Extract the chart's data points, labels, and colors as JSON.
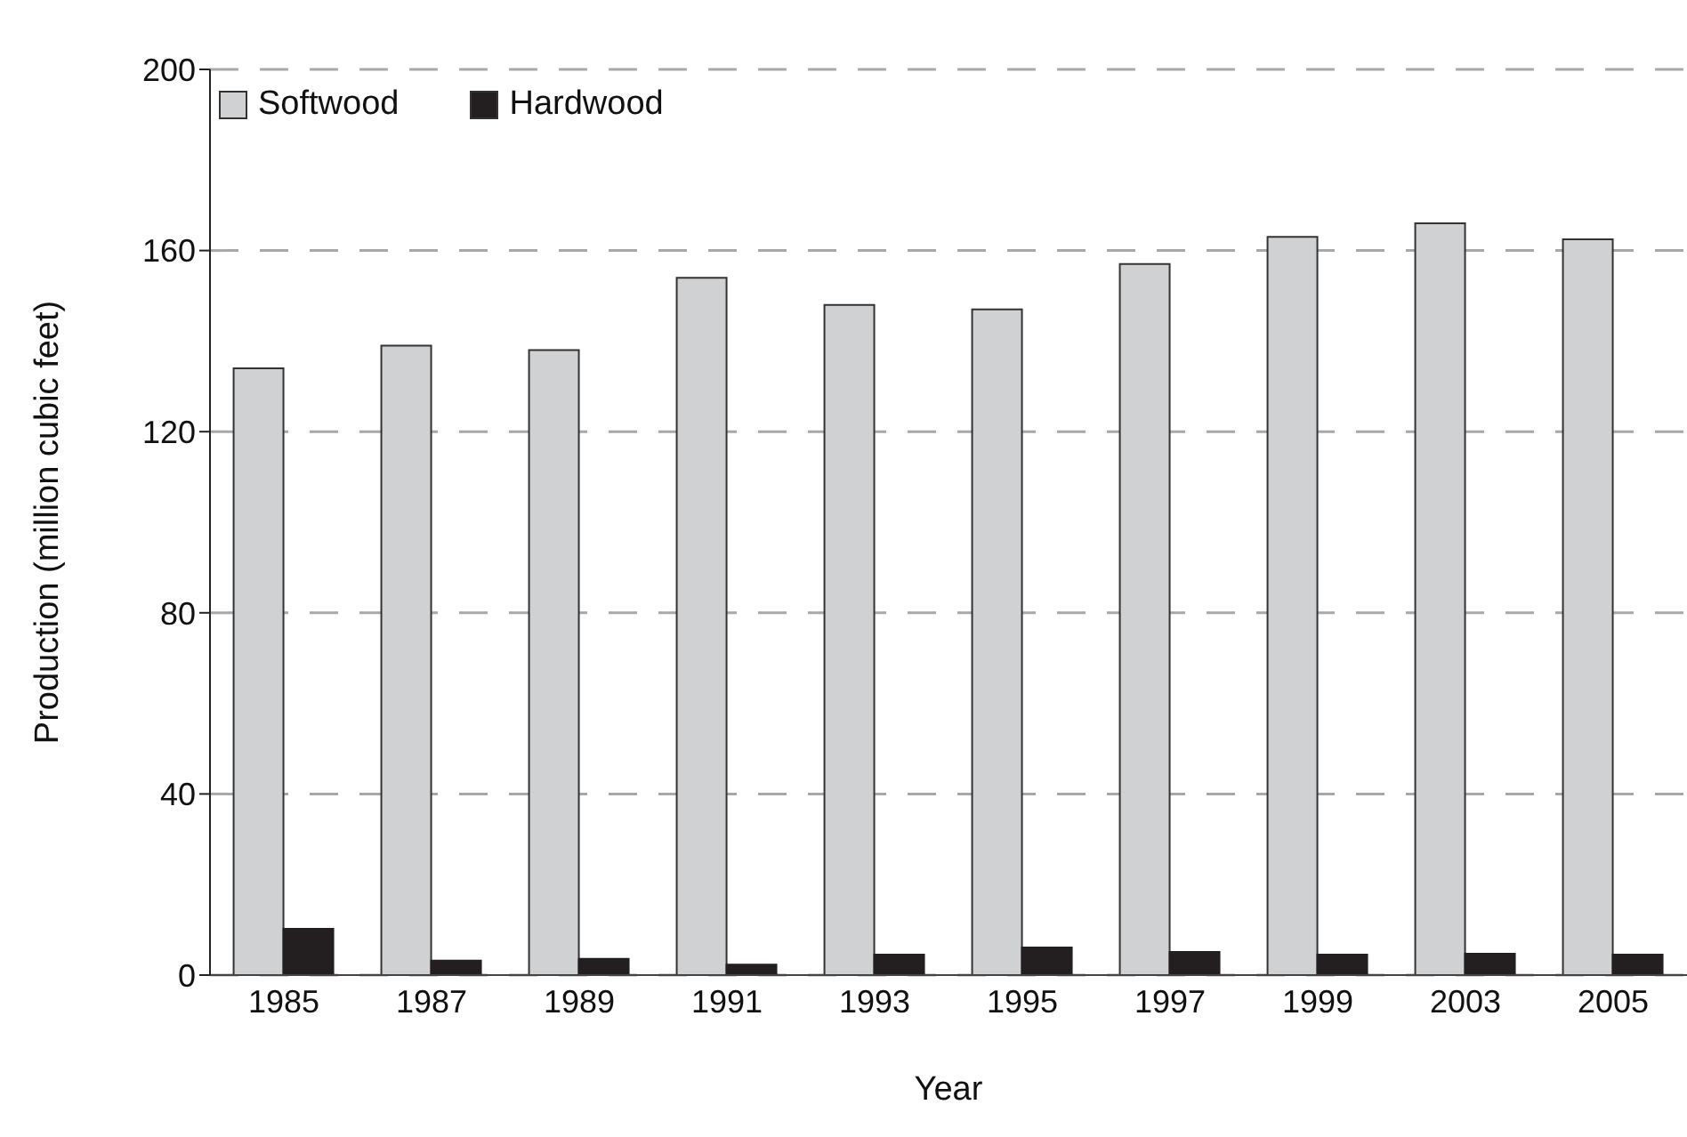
{
  "chart_data": {
    "type": "bar",
    "xlabel": "Year",
    "ylabel": "Production (million cubic feet)",
    "categories": [
      "1985",
      "1987",
      "1989",
      "1991",
      "1993",
      "1995",
      "1997",
      "1999",
      "2003",
      "2005"
    ],
    "series": [
      {
        "name": "Softwood",
        "color": "#d0d1d3",
        "values": [
          134,
          139,
          138,
          154,
          148,
          147,
          157,
          163,
          166,
          162.5
        ]
      },
      {
        "name": "Hardwood",
        "color": "#231f20",
        "values": [
          10.2,
          3.2,
          3.6,
          2.3,
          4.5,
          6.1,
          5.1,
          4.5,
          4.7,
          4.5
        ]
      }
    ],
    "ylim": [
      0,
      200
    ],
    "yticks": [
      0,
      40,
      80,
      120,
      160,
      200
    ],
    "grid": "y",
    "legend": "top left"
  }
}
